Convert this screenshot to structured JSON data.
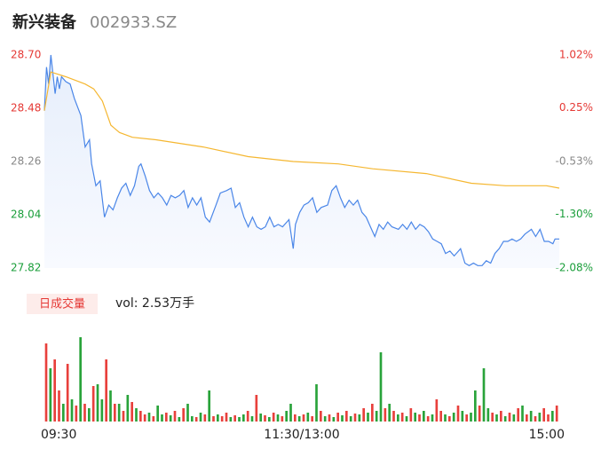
{
  "header": {
    "name": "新兴装备",
    "code": "002933.SZ"
  },
  "chart_data": [
    {
      "type": "line",
      "xlim": [
        0,
        240
      ],
      "xticks": [
        {
          "value": 0,
          "label": "09:30"
        },
        {
          "value": 120,
          "label": "11:30/13:00"
        },
        {
          "value": 240,
          "label": "15:00"
        }
      ],
      "ylim": [
        27.82,
        28.7
      ],
      "yticks": [
        {
          "value": 28.7,
          "label": "28.70"
        },
        28.48,
        28.26,
        28.04,
        27.82
      ],
      "ytick_colors": [
        "#e53935",
        "#e53935",
        "#888888",
        "#1a9e3a",
        "#1a9e3a"
      ],
      "y2lim": [
        -2.08,
        1.02
      ],
      "y2ticks": [
        {
          "value": 1.02,
          "label": "1.02%"
        },
        {
          "value": 0.25,
          "label": "0.25%"
        },
        {
          "value": -0.53,
          "label": "-0.53%"
        },
        {
          "value": -1.3,
          "label": "-1.30%"
        },
        {
          "value": -2.08,
          "label": "-2.08%"
        }
      ],
      "y2tick_colors": [
        "#e53935",
        "#e53935",
        "#888888",
        "#1a9e3a",
        "#1a9e3a"
      ],
      "series": [
        {
          "color": "#4a86e8",
          "area": true,
          "x": [
            0,
            1,
            2,
            3,
            4,
            5,
            6,
            7,
            8,
            10,
            12,
            14,
            17,
            19,
            21,
            22,
            24,
            26,
            28,
            30,
            32,
            34,
            36,
            38,
            40,
            42,
            44,
            45,
            47,
            49,
            51,
            53,
            55,
            57,
            59,
            61,
            63,
            65,
            67,
            69,
            71,
            73,
            75,
            77,
            80,
            82,
            85,
            87,
            89,
            91,
            93,
            95,
            97,
            99,
            101,
            103,
            105,
            107,
            109,
            111,
            114,
            116,
            117,
            119,
            121,
            123,
            125,
            127,
            129,
            132,
            134,
            136,
            138,
            140,
            142,
            144,
            146,
            148,
            150,
            152,
            154,
            156,
            158,
            160,
            162,
            165,
            167,
            169,
            171,
            173,
            175,
            177,
            179,
            181,
            183,
            185,
            187,
            189,
            191,
            194,
            196,
            198,
            200,
            202,
            204,
            206,
            208,
            210,
            212,
            214,
            216,
            218,
            220,
            222,
            224,
            227,
            229,
            231,
            233,
            235,
            237,
            238,
            240
          ],
          "values": [
            28.47,
            28.65,
            28.58,
            28.7,
            28.62,
            28.54,
            28.61,
            28.56,
            28.61,
            28.59,
            28.58,
            28.52,
            28.45,
            28.32,
            28.35,
            28.25,
            28.16,
            28.18,
            28.03,
            28.08,
            28.06,
            28.11,
            28.15,
            28.17,
            28.12,
            28.16,
            28.24,
            28.25,
            28.2,
            28.14,
            28.11,
            28.13,
            28.11,
            28.08,
            28.12,
            28.11,
            28.12,
            28.14,
            28.07,
            28.11,
            28.08,
            28.11,
            28.03,
            28.01,
            28.08,
            28.13,
            28.14,
            28.15,
            28.07,
            28.09,
            28.03,
            27.99,
            28.03,
            27.99,
            27.98,
            27.99,
            28.03,
            27.99,
            28.0,
            27.99,
            28.02,
            27.9,
            28.0,
            28.05,
            28.08,
            28.09,
            28.11,
            28.05,
            28.07,
            28.08,
            28.14,
            28.16,
            28.11,
            28.07,
            28.1,
            28.08,
            28.1,
            28.05,
            28.03,
            27.99,
            27.95,
            28.0,
            27.98,
            28.01,
            27.99,
            27.98,
            28.0,
            27.98,
            28.01,
            27.98,
            28.0,
            27.99,
            27.97,
            27.94,
            27.93,
            27.92,
            27.88,
            27.89,
            27.87,
            27.9,
            27.84,
            27.83,
            27.84,
            27.83,
            27.83,
            27.85,
            27.84,
            27.88,
            27.9,
            27.93,
            27.93,
            27.94,
            27.93,
            27.94,
            27.96,
            27.98,
            27.95,
            27.98,
            27.93,
            27.93,
            27.92,
            27.94,
            27.94
          ]
        },
        {
          "color": "#f5b731",
          "area": false,
          "x": [
            0,
            3,
            10,
            19,
            23,
            27,
            31,
            35,
            41,
            52,
            74,
            95,
            116,
            137,
            153,
            178,
            199,
            215,
            234,
            240
          ],
          "values": [
            28.47,
            28.63,
            28.61,
            28.58,
            28.56,
            28.51,
            28.41,
            28.38,
            28.36,
            28.35,
            28.32,
            28.28,
            28.26,
            28.25,
            28.23,
            28.21,
            28.17,
            28.16,
            28.16,
            28.15
          ]
        }
      ]
    },
    {
      "type": "bar",
      "title": "日成交量",
      "summary": "vol: 2.53万手",
      "xlim": [
        0,
        240
      ],
      "ylim": [
        0,
        100
      ],
      "x": [
        0,
        2,
        4,
        6,
        8,
        10,
        12,
        14,
        16,
        18,
        20,
        22,
        24,
        26,
        28,
        30,
        32,
        34,
        36,
        38,
        40,
        42,
        44,
        46,
        48,
        50,
        52,
        54,
        56,
        58,
        60,
        62,
        64,
        66,
        68,
        70,
        72,
        74,
        76,
        78,
        80,
        82,
        84,
        86,
        88,
        90,
        92,
        94,
        96,
        98,
        100,
        102,
        104,
        106,
        108,
        110,
        112,
        114,
        116,
        118,
        120,
        122,
        124,
        126,
        128,
        130,
        132,
        134,
        136,
        138,
        140,
        142,
        144,
        146,
        148,
        150,
        152,
        154,
        156,
        158,
        160,
        162,
        164,
        166,
        168,
        170,
        172,
        174,
        176,
        178,
        180,
        182,
        184,
        186,
        188,
        190,
        192,
        194,
        196,
        198,
        200,
        202,
        204,
        206,
        208,
        210,
        212,
        214,
        216,
        218,
        220,
        222,
        224,
        226,
        228,
        230,
        232,
        234,
        236,
        238
      ],
      "values": [
        88,
        60,
        70,
        35,
        20,
        65,
        25,
        18,
        95,
        20,
        15,
        40,
        42,
        25,
        70,
        35,
        20,
        20,
        12,
        30,
        22,
        15,
        12,
        8,
        10,
        6,
        18,
        8,
        10,
        7,
        12,
        5,
        15,
        20,
        6,
        5,
        10,
        8,
        35,
        6,
        8,
        6,
        10,
        5,
        7,
        5,
        8,
        12,
        6,
        30,
        9,
        7,
        5,
        10,
        8,
        6,
        12,
        20,
        8,
        6,
        8,
        10,
        6,
        42,
        12,
        6,
        8,
        5,
        10,
        7,
        12,
        6,
        9,
        8,
        15,
        10,
        20,
        12,
        78,
        15,
        20,
        12,
        8,
        10,
        6,
        15,
        10,
        8,
        12,
        6,
        8,
        25,
        12,
        8,
        6,
        10,
        18,
        12,
        8,
        10,
        35,
        18,
        60,
        15,
        10,
        8,
        12,
        6,
        10,
        8,
        15,
        18,
        8,
        12,
        6,
        10,
        15,
        8,
        12,
        18
      ],
      "colors": [
        "#e8403c",
        "#29a33a",
        "#e8403c",
        "#e8403c",
        "#29a33a",
        "#e8403c",
        "#29a33a",
        "#e8403c",
        "#29a33a",
        "#e8403c",
        "#29a33a",
        "#e8403c",
        "#29a33a",
        "#29a33a",
        "#e8403c",
        "#29a33a",
        "#e8403c",
        "#29a33a",
        "#e8403c",
        "#29a33a",
        "#e8403c",
        "#29a33a",
        "#e8403c",
        "#e8403c",
        "#29a33a",
        "#e8403c",
        "#29a33a",
        "#29a33a",
        "#e8403c",
        "#29a33a",
        "#e8403c",
        "#29a33a",
        "#e8403c",
        "#29a33a",
        "#29a33a",
        "#e8403c",
        "#29a33a",
        "#e8403c",
        "#29a33a",
        "#e8403c",
        "#29a33a",
        "#e8403c",
        "#e8403c",
        "#29a33a",
        "#e8403c",
        "#29a33a",
        "#29a33a",
        "#e8403c",
        "#29a33a",
        "#e8403c",
        "#29a33a",
        "#e8403c",
        "#29a33a",
        "#e8403c",
        "#29a33a",
        "#e8403c",
        "#29a33a",
        "#29a33a",
        "#e8403c",
        "#29a33a",
        "#e8403c",
        "#29a33a",
        "#e8403c",
        "#29a33a",
        "#e8403c",
        "#29a33a",
        "#e8403c",
        "#29a33a",
        "#e8403c",
        "#29a33a",
        "#e8403c",
        "#29a33a",
        "#e8403c",
        "#29a33a",
        "#e8403c",
        "#29a33a",
        "#e8403c",
        "#29a33a",
        "#29a33a",
        "#e8403c",
        "#29a33a",
        "#e8403c",
        "#29a33a",
        "#e8403c",
        "#29a33a",
        "#e8403c",
        "#29a33a",
        "#e8403c",
        "#29a33a",
        "#e8403c",
        "#29a33a",
        "#e8403c",
        "#e8403c",
        "#29a33a",
        "#e8403c",
        "#29a33a",
        "#e8403c",
        "#29a33a",
        "#e8403c",
        "#29a33a",
        "#29a33a",
        "#e8403c",
        "#29a33a",
        "#29a33a",
        "#e8403c",
        "#29a33a",
        "#e8403c",
        "#29a33a",
        "#e8403c",
        "#29a33a",
        "#e8403c",
        "#29a33a",
        "#e8403c",
        "#29a33a",
        "#e8403c",
        "#29a33a",
        "#e8403c",
        "#e8403c",
        "#29a33a",
        "#e8403c"
      ]
    }
  ]
}
